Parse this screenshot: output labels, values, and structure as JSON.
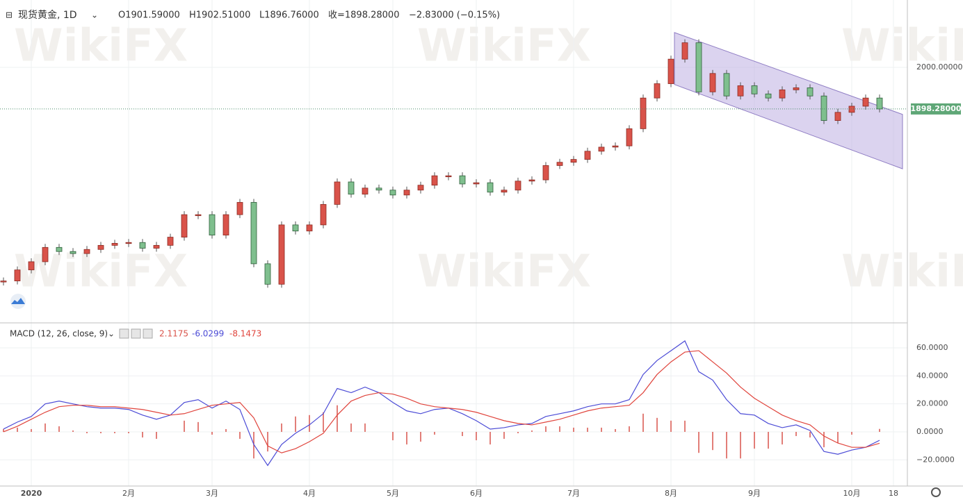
{
  "header": {
    "symbol": "现货黄金, 1D",
    "open": "O1901.59000",
    "high": "H1902.51000",
    "low": "L1896.76000",
    "close": "收=1898.28000",
    "change": "−2.83000 (−0.15%)"
  },
  "watermark": "WikiFX",
  "chart_data": [
    {
      "type": "candlestick",
      "color_up": "#d9534a",
      "color_down": "#7fbf8e",
      "categories": [
        null,
        null,
        "2020",
        null,
        null,
        null,
        null,
        null,
        null,
        "2月",
        null,
        null,
        null,
        null,
        null,
        "3月",
        null,
        null,
        null,
        null,
        null,
        null,
        "4月",
        null,
        null,
        null,
        null,
        null,
        "5月",
        null,
        null,
        null,
        null,
        null,
        "6月",
        null,
        null,
        null,
        null,
        null,
        null,
        "7月",
        null,
        null,
        null,
        null,
        null,
        null,
        "8月",
        null,
        null,
        null,
        null,
        null,
        "9月",
        null,
        null,
        null,
        null,
        null,
        null,
        "10月",
        null,
        null,
        "18"
      ],
      "values": [
        1478,
        1505,
        1525,
        1560,
        1550,
        1545,
        1555,
        1565,
        1570,
        1572,
        1558,
        1565,
        1585,
        1640,
        1640,
        1590,
        1640,
        1670,
        1520,
        1470,
        1615,
        1600,
        1615,
        1665,
        1720,
        1690,
        1705,
        1700,
        1688,
        1700,
        1712,
        1735,
        1735,
        1715,
        1718,
        1695,
        1700,
        1722,
        1725,
        1760,
        1768,
        1775,
        1795,
        1805,
        1808,
        1850,
        1925,
        1960,
        2020,
        2060,
        1940,
        1985,
        1930,
        1955,
        1935,
        1925,
        1945,
        1950,
        1930,
        1870,
        1890,
        1905,
        1925,
        1898.28,
        null
      ],
      "ylim": [
        1379,
        2156
      ],
      "yticks": [
        {
          "value": 2000,
          "label": "2000.00000"
        }
      ],
      "price_tag": {
        "value": 1898.28,
        "label": "1898.28000"
      },
      "channel": {
        "x": [
          48.25,
          64.65
        ],
        "upper": [
          2085,
          1885
        ],
        "lower": [
          1958,
          1752
        ],
        "color": "#b7a8e0"
      },
      "grid": true
    },
    {
      "type": "macd",
      "title": "MACD (12, 26, close, 9)",
      "value_labels": [
        "2.1175",
        "-6.0299",
        "-8.1473"
      ],
      "series": [
        {
          "name": "Histogram",
          "color": "#d9534a",
          "values": [
            2,
            3,
            2,
            6,
            4,
            1,
            -1,
            -1,
            -1,
            -1,
            -4,
            -5,
            0,
            8,
            7,
            -2,
            2,
            -5,
            -19,
            -14,
            6,
            11,
            12,
            14,
            19,
            6,
            6,
            0,
            -6,
            -9,
            -7,
            -2,
            0,
            -3,
            -6,
            -9,
            -5,
            -1,
            1,
            4,
            4,
            3,
            3,
            3,
            2,
            4,
            13,
            10,
            8,
            8,
            -15,
            -13,
            -19,
            -19,
            -12,
            -12,
            -9,
            -3,
            -4,
            -11,
            -8,
            -2,
            0,
            2.1175,
            null
          ]
        },
        {
          "name": "MACD",
          "color": "#4b4bd6",
          "values": [
            2,
            7,
            11,
            20,
            22,
            20,
            18,
            17,
            17,
            16,
            12,
            9,
            12,
            21,
            23,
            17,
            22,
            16,
            -9,
            -24,
            -9,
            -1,
            5,
            13,
            31,
            28,
            32,
            28,
            21,
            15,
            13,
            16,
            17,
            13,
            8,
            2,
            3,
            5,
            6,
            11,
            13,
            15,
            18,
            20,
            20,
            23,
            41,
            51,
            58,
            65,
            43,
            37,
            23,
            13,
            12,
            6,
            3,
            5,
            1,
            -14,
            -16,
            -13,
            -11,
            -6.0299,
            null
          ]
        },
        {
          "name": "Signal",
          "color": "#e0443c",
          "values": [
            0,
            4,
            9,
            14,
            18,
            19,
            19,
            18,
            18,
            17,
            16,
            14,
            12,
            13,
            16,
            19,
            20,
            21,
            10,
            -10,
            -15,
            -12,
            -7,
            -1,
            12,
            22,
            26,
            28,
            27,
            24,
            20,
            18,
            17,
            16,
            14,
            11,
            8,
            6,
            5,
            7,
            9,
            12,
            15,
            17,
            18,
            19,
            28,
            41,
            50,
            57,
            58,
            50,
            42,
            32,
            24,
            18,
            12,
            8,
            5,
            -3,
            -8,
            -11,
            -11,
            -8.1473,
            null
          ]
        }
      ],
      "ylim": [
        -38.7,
        75.4
      ],
      "yticks": [
        {
          "value": 60,
          "label": "60.0000"
        },
        {
          "value": 40,
          "label": "40.0000"
        },
        {
          "value": 20,
          "label": "20.0000"
        },
        {
          "value": 0,
          "label": "0.0000"
        },
        {
          "value": -20,
          "label": "−20.0000"
        }
      ]
    }
  ]
}
